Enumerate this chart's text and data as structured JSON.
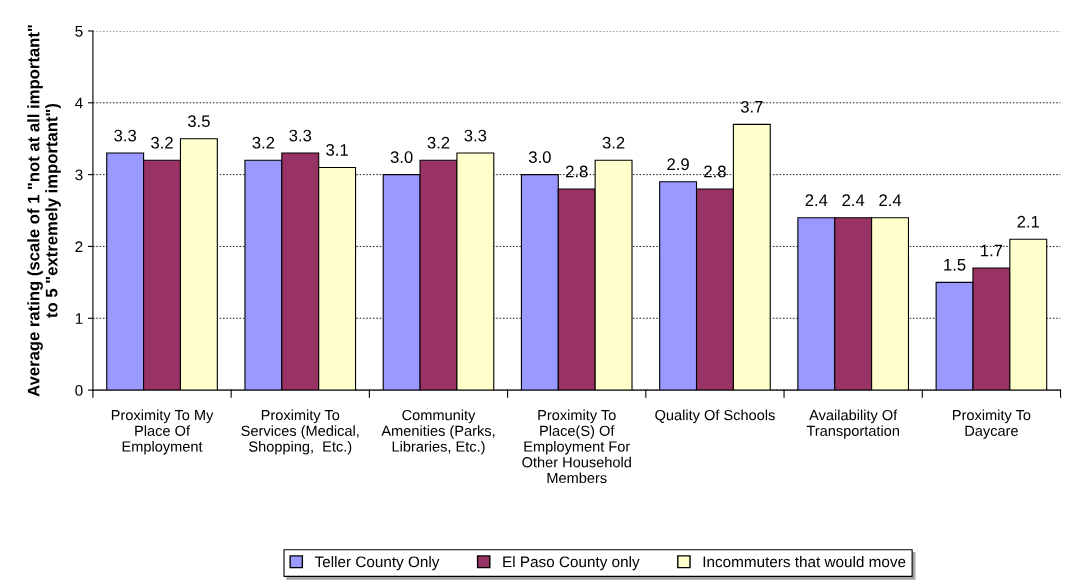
{
  "chart_data": {
    "type": "bar",
    "ylabel": "Average rating (scale of 1 \"not at all important\"\nto 5 \"extremely important\")",
    "categories": [
      "Proximity To My\nPlace Of\nEmployment",
      "Proximity To\nServices (Medical,\nShopping,  Etc.)",
      "Community\nAmenities (Parks,\nLibraries, Etc.)",
      "Proximity To\nPlace(S) Of\nEmployment For\nOther Household\nMembers",
      "Quality Of Schools",
      "Availability Of\nTransportation",
      "Proximity To\nDaycare"
    ],
    "series": [
      {
        "name": "Teller County Only",
        "color": "#9999ff",
        "values": [
          3.3,
          3.2,
          3.0,
          3.0,
          2.9,
          2.4,
          1.5
        ],
        "value_labels": [
          "3.3",
          "3.2",
          "3.0",
          "3.0",
          "2.9",
          "2.4",
          "1.5"
        ]
      },
      {
        "name": "El Paso County only",
        "color": "#993366",
        "values": [
          3.2,
          3.3,
          3.2,
          2.8,
          2.8,
          2.4,
          1.7
        ],
        "value_labels": [
          "3.2",
          "3.3",
          "3.2",
          "2.8",
          "2.8",
          "2.4",
          "1.7"
        ]
      },
      {
        "name": "Incommuters that would move",
        "color": "#ffffcc",
        "values": [
          3.5,
          3.1,
          3.3,
          3.2,
          3.7,
          2.4,
          2.1
        ],
        "value_labels": [
          "3.5",
          "3.1",
          "3.3",
          "3.2",
          "3.7",
          "2.4",
          "2.1"
        ]
      }
    ],
    "ylim": [
      0,
      5
    ],
    "yticks": [
      0,
      1,
      2,
      3,
      4,
      5
    ],
    "grid": "y",
    "legend": "bottom"
  }
}
